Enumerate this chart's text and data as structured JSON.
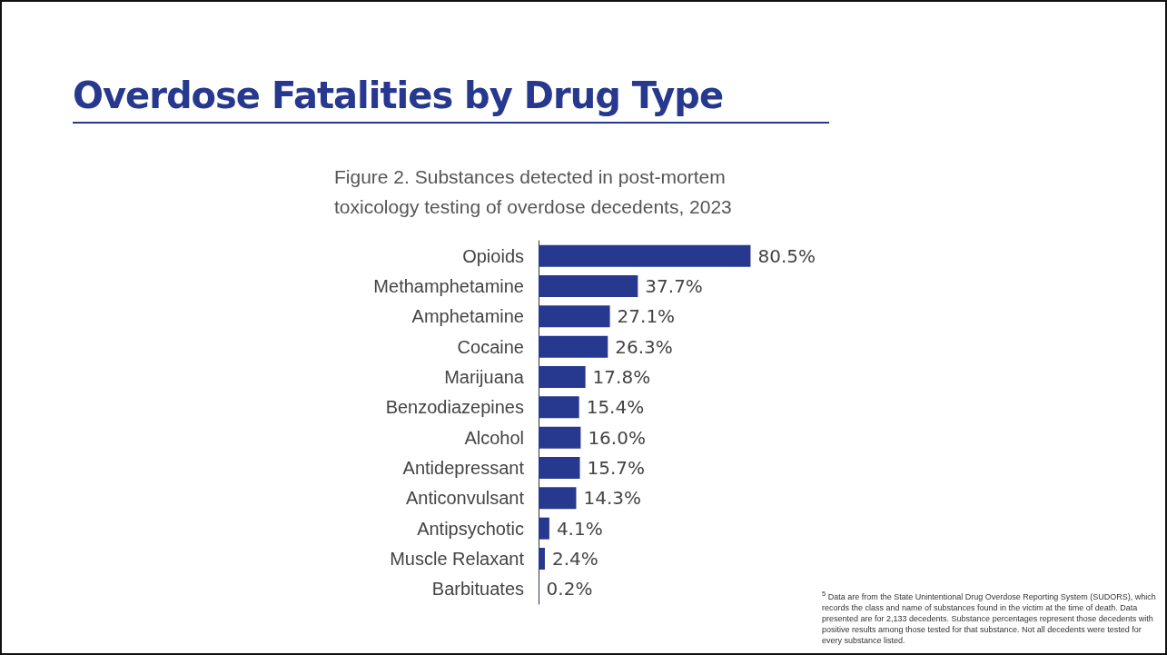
{
  "chart_data": {
    "type": "bar",
    "orientation": "horizontal",
    "title": "Overdose Fatalities by Drug Type",
    "subtitle": "Figure 2. Substances detected in post-mortem toxicology testing of overdose decedents, 2023",
    "categories": [
      "Opioids",
      "Methamphetamine",
      "Amphetamine",
      "Cocaine",
      "Marijuana",
      "Benzodiazepines",
      "Alcohol",
      "Antidepressant",
      "Anticonvulsant",
      "Antipsychotic",
      "Muscle Relaxant",
      "Barbituates"
    ],
    "values": [
      80.5,
      37.7,
      27.1,
      26.3,
      17.8,
      15.4,
      16.0,
      15.7,
      14.3,
      4.1,
      2.4,
      0.2
    ],
    "value_labels": [
      "80.5%",
      "37.7%",
      "27.1%",
      "26.3%",
      "17.8%",
      "15.4%",
      "16.0%",
      "15.7%",
      "14.3%",
      "4.1%",
      "2.4%",
      "0.2%"
    ],
    "color": "#27388f",
    "grid": false,
    "annotations": [
      "$^{5}$ Data are from the State Unintentional Drug Overdose Reporting System (SUDORS), which records the class and name of substances found in the victim at the time of death. Data presented are for 2,133 decedents. Substance percentages represent those decedents with positive results among those tested for that substance. Not all decedents were tested for every substance listed."
    ]
  }
}
